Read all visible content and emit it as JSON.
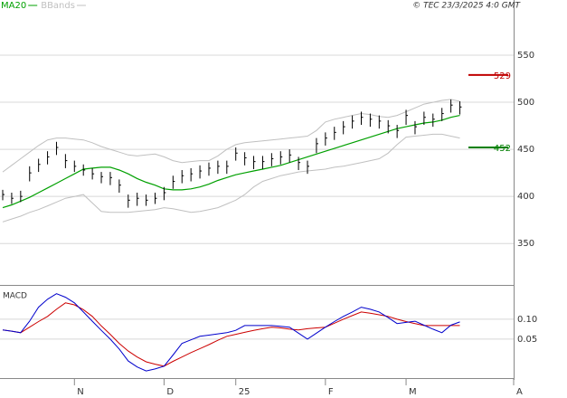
{
  "chart_data": [
    {
      "type": "hlc",
      "source": "© TEC 23/3/2025 4:0 GMT",
      "bars": {
        "color": "#000000",
        "high": [
          407,
          404,
          406,
          432,
          440,
          448,
          458,
          445,
          438,
          434,
          430,
          426,
          426,
          418,
          402,
          404,
          402,
          404,
          410,
          422,
          428,
          430,
          433,
          436,
          438,
          438,
          452,
          447,
          443,
          443,
          446,
          448,
          450,
          442,
          438,
          462,
          468,
          474,
          480,
          486,
          490,
          488,
          486,
          481,
          476,
          492,
          480,
          490,
          488,
          494,
          503,
          501
        ],
        "low": [
          396,
          392,
          394,
          416,
          426,
          434,
          444,
          430,
          426,
          422,
          418,
          414,
          412,
          404,
          388,
          390,
          390,
          392,
          396,
          408,
          414,
          416,
          419,
          422,
          424,
          424,
          438,
          433,
          429,
          429,
          432,
          434,
          436,
          428,
          424,
          446,
          454,
          460,
          466,
          472,
          476,
          474,
          472,
          467,
          462,
          476,
          466,
          476,
          474,
          480,
          489,
          487
        ],
        "close": [
          402,
          398,
          400,
          425,
          434,
          442,
          452,
          438,
          432,
          428,
          424,
          421,
          420,
          412,
          396,
          398,
          396,
          398,
          404,
          416,
          422,
          424,
          427,
          430,
          432,
          432,
          446,
          441,
          437,
          437,
          440,
          442,
          444,
          436,
          432,
          456,
          462,
          468,
          474,
          480,
          484,
          482,
          480,
          475,
          470,
          486,
          474,
          484,
          482,
          488,
          497,
          495
        ]
      },
      "series": [
        {
          "name": "MA20",
          "color": "#00a000",
          "values": [
            388,
            391,
            395,
            399,
            404,
            409,
            414,
            419,
            424,
            429,
            430,
            431,
            431,
            428,
            424,
            419,
            415,
            412,
            408,
            407,
            407,
            408,
            410,
            413,
            417,
            420,
            423,
            425,
            427,
            429,
            431,
            433,
            436,
            439,
            442,
            445,
            448,
            451,
            454,
            457,
            460,
            463,
            466,
            469,
            472,
            474,
            476,
            478,
            479,
            481,
            484,
            486
          ]
        },
        {
          "name": "BBands",
          "color": "#c0c0c0",
          "upper": [
            426,
            433,
            440,
            447,
            454,
            460,
            462,
            462,
            461,
            460,
            457,
            453,
            450,
            447,
            444,
            443,
            444,
            445,
            442,
            438,
            436,
            437,
            438,
            438,
            443,
            450,
            455,
            457,
            458,
            459,
            460,
            461,
            462,
            463,
            464,
            470,
            479,
            482,
            484,
            486,
            488,
            487,
            485,
            484,
            486,
            490,
            494,
            498,
            500,
            502,
            503,
            501
          ],
          "lower": [
            373,
            376,
            379,
            383,
            386,
            390,
            394,
            398,
            400,
            402,
            393,
            384,
            383,
            383,
            383,
            384,
            385,
            386,
            388,
            387,
            385,
            383,
            384,
            386,
            388,
            392,
            396,
            402,
            410,
            416,
            419,
            422,
            424,
            426,
            427,
            428,
            429,
            431,
            432,
            434,
            436,
            438,
            440,
            446,
            455,
            463,
            464,
            465,
            466,
            466,
            464,
            462
          ]
        }
      ],
      "annotations": [
        {
          "value": 529,
          "color": "#c00000"
        },
        {
          "value": 452,
          "color": "#008000"
        }
      ],
      "ylim": [
        306,
        599
      ],
      "yticks": [
        350,
        400,
        450,
        500,
        550
      ],
      "grid": true
    },
    {
      "type": "line",
      "title": "MACD",
      "categories": [
        null,
        null,
        null,
        null,
        null,
        null,
        null,
        null,
        "N",
        null,
        null,
        null,
        null,
        null,
        null,
        null,
        null,
        null,
        "D",
        null,
        null,
        null,
        null,
        null,
        null,
        null,
        "25",
        null,
        null,
        null,
        null,
        null,
        null,
        null,
        null,
        null,
        "F",
        null,
        null,
        null,
        null,
        null,
        null,
        null,
        null,
        "M",
        null,
        null,
        null,
        null,
        null,
        null,
        null,
        null,
        null,
        null,
        null,
        "A"
      ],
      "series": [
        {
          "color": "#0000cc",
          "values": [
            0.073,
            0.07,
            0.066,
            0.095,
            0.13,
            0.15,
            0.164,
            0.155,
            0.141,
            0.118,
            0.095,
            0.072,
            0.05,
            0.025,
            -0.005,
            -0.02,
            -0.03,
            -0.025,
            -0.018,
            0.01,
            0.039,
            0.048,
            0.057,
            0.06,
            0.063,
            0.066,
            0.072,
            0.084,
            0.084,
            0.084,
            0.084,
            0.082,
            0.08,
            0.065,
            0.05,
            0.065,
            0.08,
            0.094,
            0.107,
            0.118,
            0.13,
            0.125,
            0.118,
            0.104,
            0.089,
            0.092,
            0.095,
            0.085,
            0.075,
            0.066,
            0.085,
            0.093,
            null,
            null,
            null,
            null,
            null,
            null
          ]
        },
        {
          "color": "#cc0000",
          "values": [
            0.073,
            0.07,
            0.066,
            0.08,
            0.094,
            0.107,
            0.125,
            0.141,
            0.136,
            0.124,
            0.107,
            0.083,
            0.062,
            0.039,
            0.02,
            0.005,
            -0.007,
            -0.013,
            -0.018,
            -0.006,
            0.005,
            0.016,
            0.026,
            0.036,
            0.047,
            0.057,
            0.062,
            0.067,
            0.072,
            0.076,
            0.08,
            0.078,
            0.075,
            0.073,
            0.076,
            0.078,
            0.08,
            0.09,
            0.1,
            0.109,
            0.118,
            0.115,
            0.111,
            0.107,
            0.1,
            0.094,
            0.089,
            0.084,
            0.084,
            0.084,
            0.084,
            0.084,
            null,
            null,
            null,
            null,
            null,
            null
          ]
        }
      ],
      "ylim": [
        -0.048,
        0.186
      ],
      "yticks": [
        {
          "value": 0.05,
          "label": "0.05"
        },
        {
          "value": 0.1,
          "label": "0.10"
        }
      ],
      "grid": true
    }
  ]
}
